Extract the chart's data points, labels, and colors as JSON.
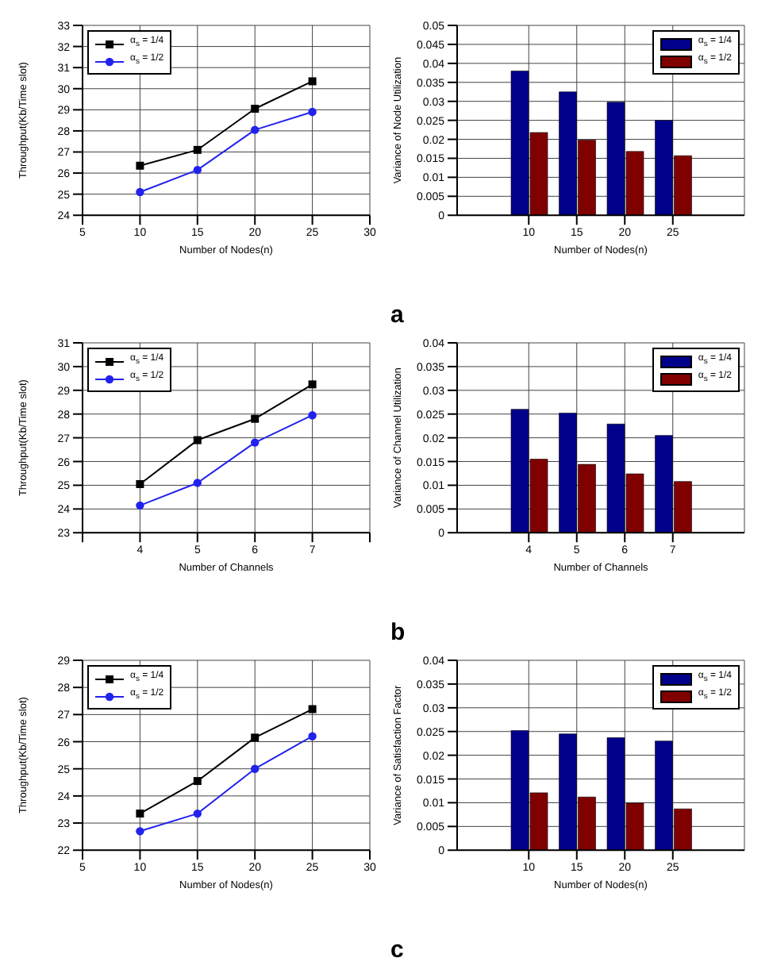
{
  "chart_data": [
    {
      "type": "line",
      "xlabel": "Number of Nodes(n)",
      "ylabel": "Throughput(Kb/Time slot)",
      "x": [
        10,
        15,
        20,
        25
      ],
      "xlim": [
        5,
        30
      ],
      "xticks": [
        5,
        10,
        15,
        20,
        25,
        30
      ],
      "ylim": [
        24,
        33
      ],
      "yticks": [
        24,
        25,
        26,
        27,
        28,
        29,
        30,
        31,
        32,
        33
      ],
      "grid": true,
      "legend": "top left",
      "series": [
        {
          "name": "α$_{s}$ = 1/4",
          "color": "#000000",
          "marker": "square",
          "values": [
            26.35,
            27.1,
            29.05,
            30.35
          ]
        },
        {
          "name": "α$_{s}$ = 1/2",
          "color": "#2222ee",
          "marker": "circle",
          "values": [
            25.1,
            26.15,
            28.05,
            28.9
          ]
        }
      ]
    },
    {
      "type": "bar",
      "xlabel": "Number of Nodes(n)",
      "ylabel": "Variance of Node Utilization",
      "categories": [
        "10",
        "15",
        "20",
        "25"
      ],
      "ylim": [
        0,
        0.05
      ],
      "yticks": [
        0,
        0.005,
        0.01,
        0.015,
        0.02,
        0.025,
        0.03,
        0.035,
        0.04,
        0.045,
        0.05
      ],
      "grid": true,
      "legend": "top right",
      "annotations": [
        "a"
      ],
      "series": [
        {
          "name": "α$_{s}$ = 1/4",
          "color": "#00008b",
          "values": [
            0.038,
            0.0325,
            0.0298,
            0.025
          ]
        },
        {
          "name": "α$_{s}$ = 1/2",
          "color": "#800000",
          "values": [
            0.0218,
            0.0198,
            0.0168,
            0.0157
          ]
        }
      ]
    },
    {
      "type": "line",
      "xlabel": "Number of Channels",
      "ylabel": "Throughput(Kb/Time slot)",
      "x": [
        4,
        5,
        6,
        7
      ],
      "xlim": [
        3,
        8
      ],
      "xticks": [
        {
          "value": 3,
          "label": null
        },
        4,
        5,
        6,
        7,
        {
          "value": 8,
          "label": null
        }
      ],
      "ylim": [
        23,
        31
      ],
      "yticks": [
        23,
        24,
        25,
        26,
        27,
        28,
        29,
        30,
        31
      ],
      "grid": true,
      "legend": "top left",
      "series": [
        {
          "name": "α$_{s}$ = 1/4",
          "color": "#000000",
          "marker": "square",
          "values": [
            25.05,
            26.9,
            27.8,
            29.25
          ]
        },
        {
          "name": "α$_{s}$ = 1/2",
          "color": "#2222ee",
          "marker": "circle",
          "values": [
            24.15,
            25.1,
            26.8,
            27.95
          ]
        }
      ]
    },
    {
      "type": "bar",
      "xlabel": "Number of Channels",
      "ylabel": "Variance of Channel Utilization",
      "categories": [
        "4",
        "5",
        "6",
        "7"
      ],
      "ylim": [
        0,
        0.04
      ],
      "yticks": [
        0,
        0.005,
        0.01,
        0.015,
        0.02,
        0.025,
        0.03,
        0.035,
        0.04
      ],
      "grid": true,
      "legend": "top right",
      "annotations": [
        "b"
      ],
      "series": [
        {
          "name": "α$_{s}$ = 1/4",
          "color": "#00008b",
          "values": [
            0.026,
            0.0252,
            0.0229,
            0.0205
          ]
        },
        {
          "name": "α$_{s}$ = 1/2",
          "color": "#800000",
          "values": [
            0.0155,
            0.0144,
            0.0124,
            0.0108
          ]
        }
      ]
    },
    {
      "type": "line",
      "xlabel": "Number of Nodes(n)",
      "ylabel": "Throughput(Kb/Time slot)",
      "x": [
        10,
        15,
        20,
        25
      ],
      "xlim": [
        5,
        30
      ],
      "xticks": [
        5,
        10,
        15,
        20,
        25,
        30
      ],
      "ylim": [
        22,
        29
      ],
      "yticks": [
        22,
        23,
        24,
        25,
        26,
        27,
        28,
        29
      ],
      "grid": true,
      "legend": "top left",
      "series": [
        {
          "name": "α$_{s}$ = 1/4",
          "color": "#000000",
          "marker": "square",
          "values": [
            23.35,
            24.55,
            26.15,
            27.2
          ]
        },
        {
          "name": "α$_{s}$ = 1/2",
          "color": "#2222ee",
          "marker": "circle",
          "values": [
            22.7,
            23.35,
            25.0,
            26.2
          ]
        }
      ]
    },
    {
      "type": "bar",
      "xlabel": "Number of Nodes(n)",
      "ylabel": "Variance of Satisfaction Factor",
      "categories": [
        "10",
        "15",
        "20",
        "25"
      ],
      "ylim": [
        0,
        0.04
      ],
      "yticks": [
        0,
        0.005,
        0.01,
        0.015,
        0.02,
        0.025,
        0.03,
        0.035,
        0.04
      ],
      "grid": true,
      "legend": "top right",
      "annotations": [
        "c"
      ],
      "series": [
        {
          "name": "α$_{s}$ = 1/4",
          "color": "#00008b",
          "values": [
            0.0252,
            0.0245,
            0.0237,
            0.023
          ]
        },
        {
          "name": "α$_{s}$ = 1/2",
          "color": "#800000",
          "values": [
            0.0121,
            0.0112,
            0.0099,
            0.0087
          ]
        }
      ]
    }
  ]
}
